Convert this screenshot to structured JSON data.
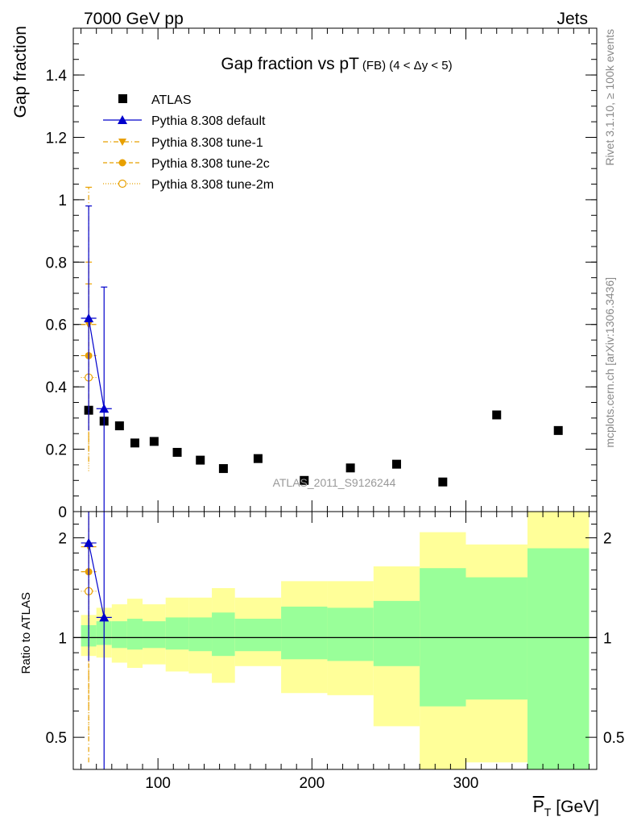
{
  "header": {
    "left": "7000 GeV pp",
    "right": "Jets"
  },
  "side_labels": {
    "rivet": "Rivet 3.1.10, ≥ 100k events",
    "mcplots": "mcplots.cern.ch [arXiv:1306.3436]"
  },
  "watermark": "ATLAS_2011_S9126244",
  "colors": {
    "atlas": "#000000",
    "default": "#0000cc",
    "tunes": "#e8a000",
    "band_inner": "#99ff99",
    "band_outer": "#ffff99"
  },
  "chart_data": [
    {
      "type": "scatter",
      "title_main": "Gap fraction vs pT",
      "title_sub": "(FB) (4 < Δy < 5)",
      "ylabel": "Gap fraction",
      "ylim": [
        0,
        1.55
      ],
      "yticks": [
        "0",
        "0.2",
        "0.4",
        "0.6",
        "0.8",
        "1",
        "1.2",
        "1.4"
      ],
      "xlim": [
        45,
        385
      ],
      "legend": [
        {
          "label": "ATLAS",
          "marker": "square",
          "color": "#000000"
        },
        {
          "label": "Pythia 8.308 default",
          "marker": "triangle-up",
          "color": "#0000cc",
          "line": "solid"
        },
        {
          "label": "Pythia 8.308 tune-1",
          "marker": "triangle-down",
          "color": "#e8a000",
          "line": "dashdot"
        },
        {
          "label": "Pythia 8.308 tune-2c",
          "marker": "circle",
          "color": "#e8a000",
          "line": "dashed"
        },
        {
          "label": "Pythia 8.308 tune-2m",
          "marker": "circle-open",
          "color": "#e8a000",
          "line": "dotted"
        }
      ],
      "atlas": {
        "x": [
          55,
          65,
          75,
          85,
          97.5,
          112.5,
          127.5,
          142.5,
          165,
          195,
          225,
          255,
          285,
          320,
          360
        ],
        "xerr_lo": [
          5,
          5,
          5,
          5,
          7.5,
          7.5,
          7.5,
          7.5,
          15,
          15,
          15,
          15,
          15,
          20,
          20
        ],
        "xerr_hi": [
          5,
          5,
          5,
          5,
          7.5,
          7.5,
          7.5,
          7.5,
          15,
          15,
          15,
          15,
          15,
          20,
          20
        ],
        "y": [
          0.325,
          0.29,
          0.275,
          0.22,
          0.225,
          0.19,
          0.165,
          0.138,
          0.17,
          0.1,
          0.14,
          0.152,
          0.095,
          0.31,
          0.26
        ]
      },
      "series": [
        {
          "name": "Pythia 8.308 default",
          "x": [
            55,
            65
          ],
          "y": [
            0.62,
            0.33
          ],
          "err": [
            0.36,
            0.39
          ],
          "color": "#0000cc",
          "marker": "triangle-up",
          "dash": ""
        },
        {
          "name": "Pythia 8.308 tune-1",
          "x": [
            55
          ],
          "y": [
            0.6
          ],
          "err": [
            0.44
          ],
          "color": "#e8a000",
          "marker": "triangle-down",
          "dash": "6,3,1,3"
        },
        {
          "name": "Pythia 8.308 tune-2c",
          "x": [
            55
          ],
          "y": [
            0.5
          ],
          "err": [
            0.3
          ],
          "color": "#e8a000",
          "marker": "circle",
          "dash": "5,3"
        },
        {
          "name": "Pythia 8.308 tune-2m",
          "x": [
            55
          ],
          "y": [
            0.43
          ],
          "err": [
            0.3
          ],
          "color": "#e8a000",
          "marker": "circle-open",
          "dash": "1,2"
        }
      ]
    },
    {
      "type": "scatter",
      "ylabel": "Ratio to ATLAS",
      "xlabel_main": "P",
      "xlabel_sub": "T",
      "xlabel_unit": "[GeV]",
      "ylog": true,
      "ylim": [
        0.4,
        2.4
      ],
      "yticks": [
        0.5,
        1,
        2
      ],
      "ytick_labels": [
        "0.5",
        "1",
        "2"
      ],
      "xlim": [
        45,
        385
      ],
      "xticks": [
        100,
        200,
        300
      ],
      "xtick_labels": [
        "100",
        "200",
        "300"
      ],
      "bands": {
        "edges": [
          50,
          60,
          70,
          80,
          90,
          105,
          120,
          135,
          150,
          180,
          210,
          240,
          270,
          300,
          340,
          380
        ],
        "inner_lo": [
          0.94,
          0.95,
          0.93,
          0.92,
          0.93,
          0.92,
          0.91,
          0.88,
          0.91,
          0.86,
          0.85,
          0.82,
          0.62,
          0.65,
          0.38
        ],
        "inner_hi": [
          1.09,
          1.12,
          1.12,
          1.14,
          1.12,
          1.15,
          1.15,
          1.19,
          1.14,
          1.24,
          1.23,
          1.29,
          1.62,
          1.52,
          1.86
        ],
        "outer_lo": [
          0.88,
          0.87,
          0.84,
          0.81,
          0.83,
          0.79,
          0.78,
          0.73,
          0.82,
          0.68,
          0.67,
          0.54,
          0.38,
          0.42,
          0.37
        ],
        "outer_hi": [
          1.17,
          1.23,
          1.26,
          1.31,
          1.26,
          1.32,
          1.32,
          1.41,
          1.32,
          1.48,
          1.48,
          1.64,
          2.08,
          1.91,
          2.4
        ]
      },
      "series": [
        {
          "name": "Pythia 8.308 default",
          "x": [
            55,
            65
          ],
          "y": [
            1.93,
            1.15
          ],
          "lo": [
            0.85,
            0.35
          ],
          "hi": [
            2.4,
            2.4
          ],
          "color": "#0000cc",
          "marker": "triangle-up",
          "dash": ""
        },
        {
          "name": "Pythia 8.308 tune-1",
          "x": [
            55
          ],
          "y": [
            1.88
          ],
          "lo": [
            0.42
          ],
          "hi": [
            2.4
          ],
          "color": "#e8a000",
          "marker": "triangle-down",
          "dash": "6,3,1,3"
        },
        {
          "name": "Pythia 8.308 tune-2c",
          "x": [
            55
          ],
          "y": [
            1.58
          ],
          "lo": [
            0.62
          ],
          "hi": [
            2.4
          ],
          "color": "#e8a000",
          "marker": "circle",
          "dash": "5,3"
        },
        {
          "name": "Pythia 8.308 tune-2m",
          "x": [
            55
          ],
          "y": [
            1.38
          ],
          "lo": [
            0.5
          ],
          "hi": [
            2.4
          ],
          "color": "#e8a000",
          "marker": "circle-open",
          "dash": "1,2"
        }
      ]
    }
  ]
}
